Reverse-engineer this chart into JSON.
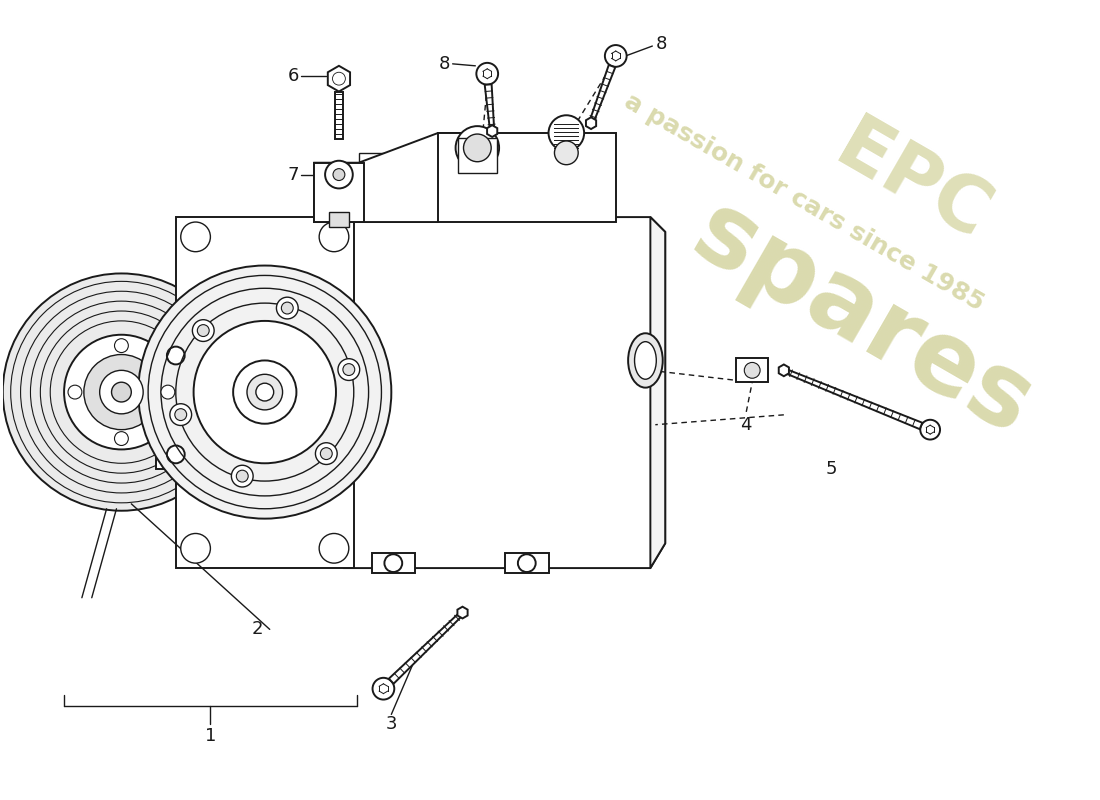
{
  "bg_color": "#ffffff",
  "line_color": "#1a1a1a",
  "watermark_line1": "a passion for cars since 1985",
  "watermark_color": "#d4d4a0",
  "fig_width": 11.0,
  "fig_height": 8.0,
  "dpi": 100
}
